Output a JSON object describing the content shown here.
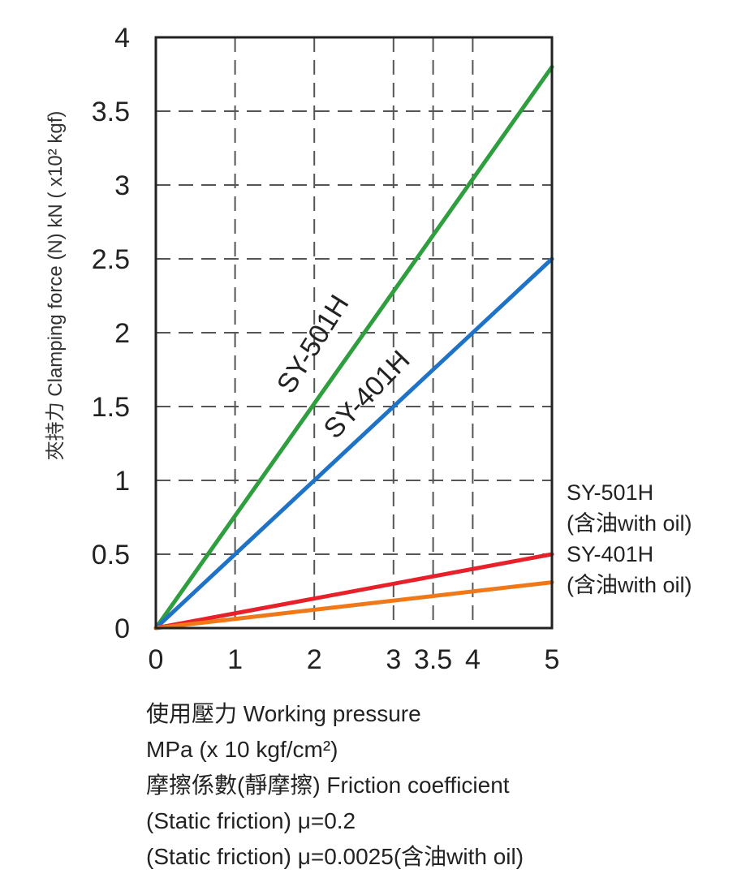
{
  "chart_data": {
    "type": "line",
    "x": [
      0,
      5
    ],
    "series": [
      {
        "name": "SY-501H",
        "values": [
          0,
          3.8
        ],
        "color": "#2e9e3e"
      },
      {
        "name": "SY-401H",
        "values": [
          0,
          2.5
        ],
        "color": "#1f73c7"
      },
      {
        "name": "SY-501H (含油with oil)",
        "values": [
          0,
          0.5
        ],
        "color": "#e8202a"
      },
      {
        "name": "SY-401H (含油with oil)",
        "values": [
          0,
          0.31
        ],
        "color": "#f07818"
      }
    ],
    "xticks": [
      "0",
      "1",
      "2",
      "3",
      "3.5",
      "4",
      "5"
    ],
    "xtick_values": [
      0,
      1,
      2,
      3,
      3.5,
      4,
      5
    ],
    "yticks": [
      "0",
      "0.5",
      "1",
      "1.5",
      "2",
      "2.5",
      "3",
      "3.5",
      "4"
    ],
    "ytick_values": [
      0,
      0.5,
      1,
      1.5,
      2,
      2.5,
      3,
      3.5,
      4
    ],
    "xlim": [
      0,
      5
    ],
    "ylim": [
      0,
      4
    ],
    "grid": true,
    "ylabel": "夾持力 Clamping force (N) kN ( x10² kgf)",
    "inline_labels": [
      "SY-501H",
      "SY-401H"
    ],
    "legend": {
      "line1": "SY-501H",
      "line2": "(含油with oil)",
      "line3": "SY-401H",
      "line4": "(含油with oil)"
    },
    "notes": {
      "xlabel": "使用壓力 Working pressure",
      "unit": "MPa (x 10 kgf/cm²)",
      "friction_title": "摩擦係數(靜摩擦) Friction coefficient",
      "friction_1": "(Static friction) μ=0.2",
      "friction_2": "(Static friction) μ=0.0025(含油with oil)"
    }
  }
}
